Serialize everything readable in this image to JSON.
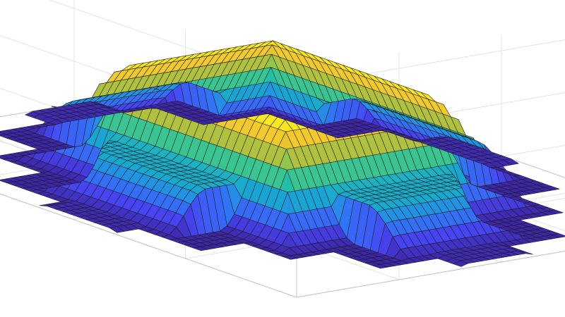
{
  "chart_data": {
    "type": "surface",
    "title": "",
    "xlabel": "",
    "ylabel": "",
    "zlabel": "",
    "x": [
      -10,
      -8,
      -5,
      -3,
      -1,
      1,
      3,
      5,
      8,
      10
    ],
    "y": [
      -10,
      -8,
      -5,
      -3,
      -1,
      1,
      3,
      5,
      8,
      10
    ],
    "z_levels": {
      "base": 0,
      "wing_top": 0.4,
      "plateau": 1
    },
    "colormap": "parula",
    "colormap_stops": [
      "#3e26a8",
      "#4745f6",
      "#2f7bf7",
      "#17a8d1",
      "#23c1a9",
      "#72cc59",
      "#d2ba30",
      "#fcce2e",
      "#f9fb15"
    ],
    "grid": true,
    "legend": "none"
  }
}
